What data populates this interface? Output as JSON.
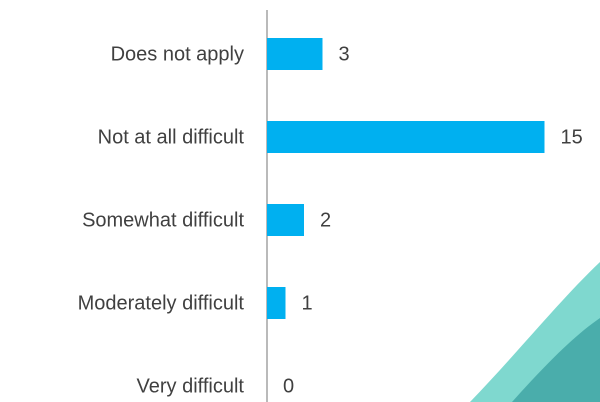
{
  "chart_data": {
    "type": "hbar",
    "categories": [
      "Does not apply",
      "Not at all difficult",
      "Somewhat difficult",
      "Moderately difficult",
      "Very difficult"
    ],
    "values": [
      3,
      15,
      2,
      1,
      0
    ],
    "color": "#00b0f0"
  }
}
